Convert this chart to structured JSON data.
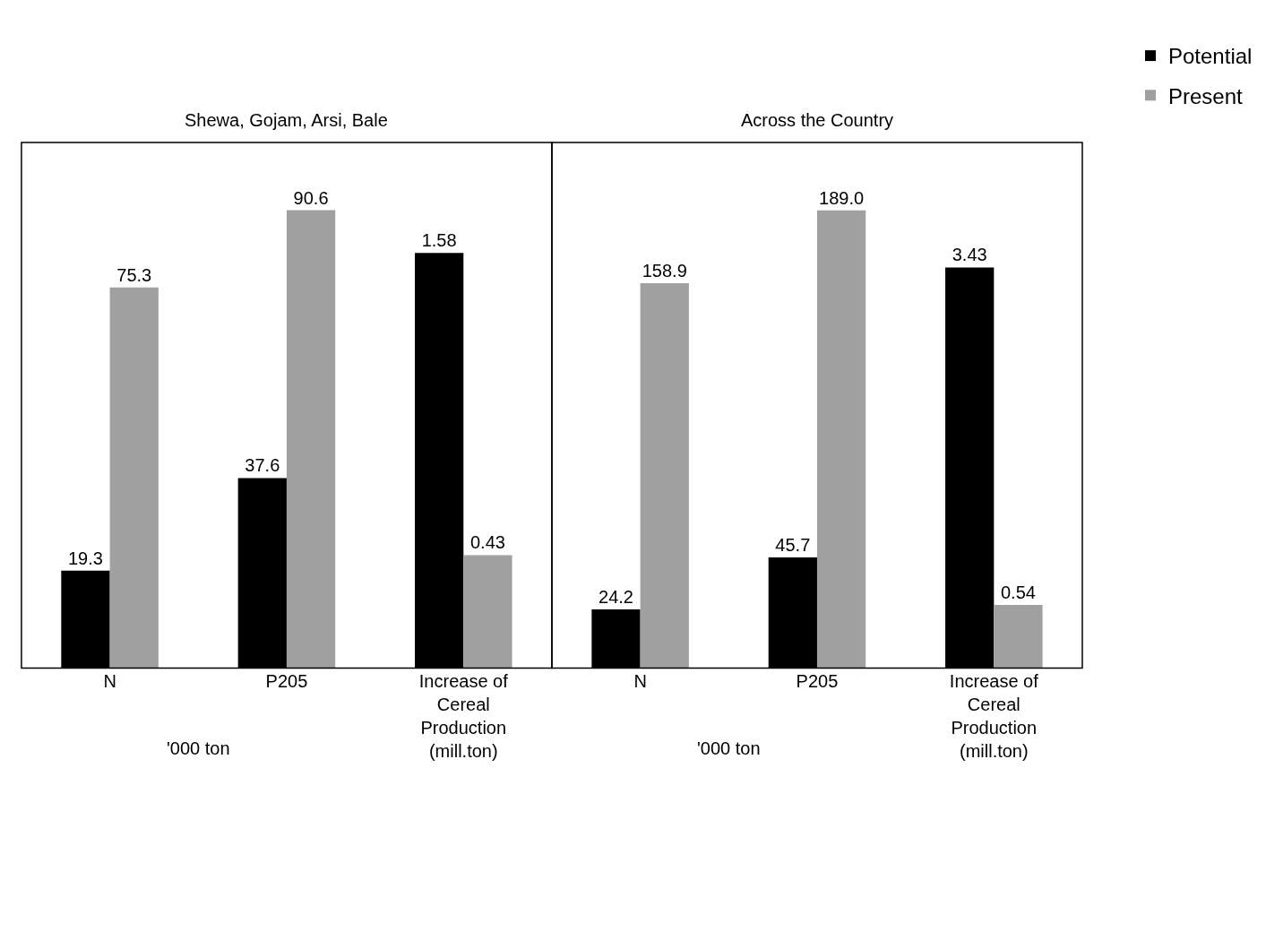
{
  "chart_data": [
    {
      "type": "bar",
      "title": "Shewa, Gojam, Arsi, Bale",
      "legend": "top right",
      "categories": [
        "N",
        "P205",
        "Increase of Cereal Production (mill.ton)"
      ],
      "ylim": [
        0,
        104
      ],
      "y2lim": [
        0,
        2
      ],
      "series": [
        {
          "name": "Potential",
          "color": "#000000",
          "values": [
            19.3,
            37.6,
            null
          ],
          "value_labels": [
            "19.3",
            "37.6",
            null
          ]
        },
        {
          "name": "Present",
          "color": "#a0a0a0",
          "values": [
            75.3,
            90.6,
            null
          ],
          "value_labels": [
            "75.3",
            "90.6",
            null
          ]
        },
        {
          "color": "#000000",
          "axis": "y2",
          "values": [
            null,
            null,
            1.58
          ],
          "value_labels": [
            null,
            null,
            "1.58"
          ]
        },
        {
          "color": "#a0a0a0",
          "axis": "y2",
          "values": [
            null,
            null,
            0.43
          ],
          "value_labels": [
            null,
            null,
            "0.43"
          ]
        }
      ],
      "annotations": [
        "'000 ton"
      ]
    },
    {
      "type": "bar",
      "title": "Across the Country",
      "legend": "top right",
      "categories": [
        "N",
        "P205",
        "Increase of Cereal Production (mill.ton)"
      ],
      "ylim": [
        0,
        217
      ],
      "y2lim": [
        0,
        4.5
      ],
      "series": [
        {
          "name": "Potential",
          "color": "#000000",
          "values": [
            24.2,
            45.7,
            null
          ],
          "value_labels": [
            "24.2",
            "45.7",
            null
          ]
        },
        {
          "name": "Present",
          "color": "#a0a0a0",
          "values": [
            158.9,
            189.0,
            null
          ],
          "value_labels": [
            "158.9",
            "189.0",
            null
          ]
        },
        {
          "color": "#000000",
          "axis": "y2",
          "values": [
            null,
            null,
            3.43
          ],
          "value_labels": [
            null,
            null,
            "3.43"
          ]
        },
        {
          "color": "#a0a0a0",
          "axis": "y2",
          "values": [
            null,
            null,
            0.54
          ],
          "value_labels": [
            null,
            null,
            "0.54"
          ]
        }
      ],
      "annotations": [
        "'000 ton"
      ]
    }
  ]
}
